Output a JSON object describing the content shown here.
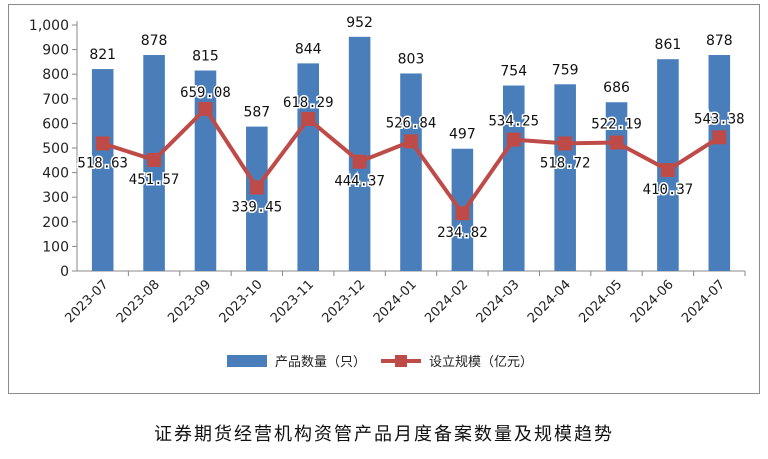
{
  "caption": "证券期货经营机构资管产品月度备案数量及规模趋势",
  "chart_data": {
    "type": "bar",
    "title": "",
    "xlabel": "",
    "ylabel": "",
    "ylim": [
      0,
      1000
    ],
    "yticks": [
      "0",
      "100",
      "200",
      "300",
      "400",
      "500",
      "600",
      "700",
      "800",
      "900",
      "1,000"
    ],
    "grid": false,
    "legend": "bottom",
    "categories": [
      "2023-07",
      "2023-08",
      "2023-09",
      "2023-10",
      "2023-11",
      "2023-12",
      "2024-01",
      "2024-02",
      "2024-03",
      "2024-04",
      "2024-05",
      "2024-06",
      "2024-07"
    ],
    "series": [
      {
        "name": "产品数量（只）",
        "type": "bar",
        "color": "#4a7ebb",
        "values": [
          821,
          878,
          815,
          587,
          844,
          952,
          803,
          497,
          754,
          759,
          686,
          861,
          878
        ],
        "labels": [
          "821",
          "878",
          "815",
          "587",
          "844",
          "952",
          "803",
          "497",
          "754",
          "759",
          "686",
          "861",
          "878"
        ]
      },
      {
        "name": "设立规模（亿元）",
        "type": "line",
        "color": "#be4b48",
        "values": [
          518.63,
          451.57,
          659.08,
          339.45,
          618.29,
          444.37,
          526.84,
          234.82,
          534.25,
          518.72,
          522.19,
          410.37,
          543.38
        ],
        "labels": [
          "518.63",
          "451.57",
          "659.08",
          "339.45",
          "618.29",
          "444.37",
          "526.84",
          "234.82",
          "534.25",
          "518.72",
          "522.19",
          "410.37",
          "543.38"
        ]
      }
    ]
  }
}
